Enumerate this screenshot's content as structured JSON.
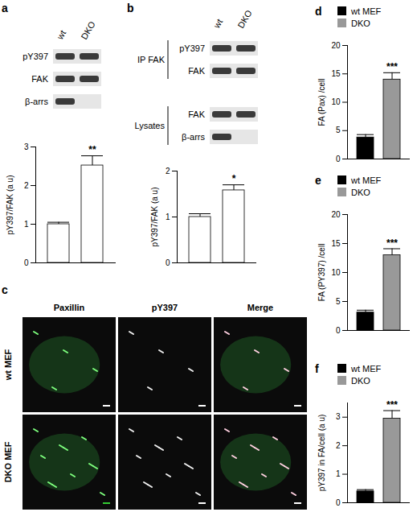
{
  "chart_data": [
    {
      "panel": "a",
      "type": "bar",
      "categories": [
        null,
        null
      ],
      "values": [
        1.0,
        2.52
      ],
      "errors": [
        0.05,
        0.25
      ],
      "colors": [
        "#ffffff",
        "#ffffff"
      ],
      "ylabel": "pY397/FAK (a u)",
      "ylim": [
        0,
        3
      ],
      "yticks": [
        0,
        1,
        2,
        3
      ],
      "tick_labels": "y",
      "annotations": [
        {
          "index": 1,
          "text": "**"
        }
      ]
    },
    {
      "panel": "b",
      "type": "bar",
      "categories": [
        null,
        null
      ],
      "values": [
        1.0,
        1.58
      ],
      "errors": [
        0.07,
        0.12
      ],
      "colors": [
        "#ffffff",
        "#ffffff"
      ],
      "ylabel": "pY397/FAK (a u)",
      "ylim": [
        0,
        2
      ],
      "yticks": [
        0,
        1,
        2
      ],
      "tick_labels": "y",
      "annotations": [
        {
          "index": 1,
          "text": "*"
        }
      ]
    },
    {
      "panel": "d",
      "type": "bar",
      "categories": [
        "wt MEF",
        "DKO"
      ],
      "values": [
        3.8,
        14.0
      ],
      "errors": [
        0.5,
        1.2
      ],
      "colors": [
        "#000000",
        "#999999"
      ],
      "ylabel": "FA (Pax) /cell",
      "ylim": [
        0,
        20
      ],
      "yticks": [
        0,
        5,
        10,
        15,
        20
      ],
      "legend": "top",
      "tick_labels": "y",
      "annotations": [
        {
          "index": 1,
          "text": "***"
        }
      ]
    },
    {
      "panel": "e",
      "type": "bar",
      "categories": [
        "wt MEF",
        "DKO"
      ],
      "values": [
        3.1,
        13.0
      ],
      "errors": [
        0.4,
        1.1
      ],
      "colors": [
        "#000000",
        "#999999"
      ],
      "ylabel": "FA (PY397) /cell",
      "ylim": [
        0,
        20
      ],
      "yticks": [
        0,
        5,
        10,
        15,
        20
      ],
      "legend": "top",
      "tick_labels": "y",
      "annotations": [
        {
          "index": 1,
          "text": "***"
        }
      ]
    },
    {
      "panel": "f",
      "type": "bar",
      "categories": [
        "wt MEF",
        "DKO"
      ],
      "values": [
        0.4,
        2.95
      ],
      "errors": [
        0.06,
        0.28
      ],
      "colors": [
        "#000000",
        "#999999"
      ],
      "ylabel": "pY397 in FA/cell (a u)",
      "ylim": [
        0,
        3.5
      ],
      "yticks": [
        0,
        1,
        2,
        3
      ],
      "legend": "top",
      "tick_labels": "y",
      "annotations": [
        {
          "index": 1,
          "text": "***"
        }
      ]
    }
  ],
  "blots": [
    {
      "panel": "a",
      "lanes": [
        "wt",
        "DKO"
      ],
      "groups": [
        {
          "label": null,
          "rows": [
            {
              "label": "pY397",
              "bands": [
                true,
                true
              ]
            },
            {
              "label": "FAK",
              "bands": [
                true,
                true
              ]
            },
            {
              "label": "β-arrs",
              "bands": [
                true,
                false
              ]
            }
          ]
        }
      ]
    },
    {
      "panel": "b",
      "lanes": [
        "wt",
        "DKO"
      ],
      "groups": [
        {
          "label": "IP FAK",
          "rows": [
            {
              "label": "pY397",
              "bands": [
                true,
                true
              ]
            },
            {
              "label": "FAK",
              "bands": [
                true,
                true
              ]
            }
          ]
        },
        {
          "label": "Lysates",
          "rows": [
            {
              "label": "FAK",
              "bands": [
                true,
                true
              ]
            },
            {
              "label": "β-arrs",
              "bands": [
                true,
                false
              ]
            }
          ]
        }
      ]
    }
  ],
  "images": {
    "panel": "c",
    "columns": [
      "Paxillin",
      "pY397",
      "Merge"
    ],
    "rows": [
      "wt MEF",
      "DKO MEF"
    ]
  }
}
